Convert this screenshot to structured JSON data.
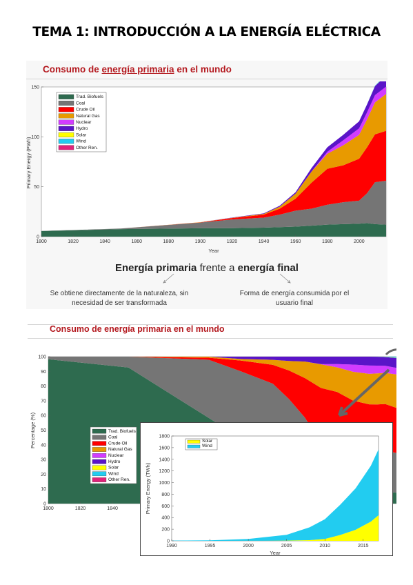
{
  "page": {
    "title": "TEMA 1: INTRODUCCIÓN A LA ENERGÍA ELÉCTRICA"
  },
  "slide1": {
    "title_pre": "Consumo de ",
    "title_link": "energía primaria",
    "title_post": " en el mundo",
    "heading_bold_1": "Energía primaria",
    "heading_mid": " frente a ",
    "heading_bold_2": "energía final",
    "desc_primary_1": "Se obtiene directamente de la naturaleza, sin",
    "desc_primary_2": "necesidad de ser transformada",
    "desc_final_1": "Forma de energía consumida por el",
    "desc_final_2": "usuario final"
  },
  "slide2": {
    "title": "Consumo de energía primaria en el mundo"
  },
  "colors": {
    "biofuels": "#2e6b4f",
    "coal": "#757575",
    "oil": "#ff0000",
    "gas": "#e89a00",
    "nuclear": "#d23cff",
    "hydro": "#5a14c8",
    "solar": "#ffff00",
    "wind": "#22ccf0",
    "other": "#e0237a",
    "title_red": "#b4191f"
  },
  "chart_data": [
    {
      "type": "area",
      "stacked": true,
      "xlabel": "Year",
      "ylabel": "Primary Energy (PWh)",
      "xlim": [
        1800,
        2017
      ],
      "ylim": [
        0,
        150
      ],
      "xticks": [
        "1800",
        "1820",
        "1840",
        "1860",
        "1880",
        "1900",
        "1920",
        "1940",
        "1960",
        "1980",
        "2000"
      ],
      "yticks": [
        "0",
        "50",
        "100",
        "150"
      ],
      "legend_position": "top-left",
      "x": [
        1800,
        1850,
        1900,
        1920,
        1940,
        1950,
        1960,
        1970,
        1980,
        1990,
        2000,
        2005,
        2010,
        2017
      ],
      "series": [
        {
          "name": "Trad. Biofuels",
          "values": [
            5.6,
            7.5,
            8.4,
            8.5,
            9,
            9.5,
            10,
            11,
            12,
            12.5,
            13,
            13.5,
            12.5,
            12
          ]
        },
        {
          "name": "Coal",
          "values": [
            0.1,
            0.6,
            5.7,
            8.7,
            10,
            12.5,
            16,
            17,
            20,
            22,
            23,
            30,
            42,
            44
          ]
        },
        {
          "name": "Crude Oil",
          "values": [
            0,
            0,
            0.2,
            1.4,
            3,
            6,
            12,
            26,
            36,
            37,
            42,
            46,
            48,
            50
          ]
        },
        {
          "name": "Natural Gas",
          "values": [
            0,
            0,
            0.1,
            0.2,
            0.8,
            2,
            5,
            11,
            15,
            20,
            24,
            28,
            32,
            37
          ]
        },
        {
          "name": "Nuclear",
          "values": [
            0,
            0,
            0,
            0,
            0,
            0,
            0,
            0.1,
            2,
            5,
            6.5,
            7,
            7.3,
            7.3
          ]
        },
        {
          "name": "Hydro",
          "values": [
            0,
            0,
            0,
            0.3,
            0.5,
            0.9,
            1.5,
            3.5,
            4.5,
            5.5,
            7,
            8,
            9,
            11
          ]
        },
        {
          "name": "Solar",
          "values": [
            0,
            0,
            0,
            0,
            0,
            0,
            0,
            0,
            0,
            0,
            0,
            0,
            0.1,
            0.3
          ]
        },
        {
          "name": "Wind",
          "values": [
            0,
            0,
            0,
            0,
            0,
            0,
            0,
            0,
            0,
            0,
            0,
            0.1,
            0.3,
            1.1
          ]
        },
        {
          "name": "Other Ren.",
          "values": [
            0,
            0,
            0,
            0,
            0,
            0,
            0,
            0,
            0,
            0,
            0,
            0,
            0,
            0
          ]
        }
      ]
    },
    {
      "type": "area",
      "stacked": true,
      "percent": true,
      "ylabel": "Percentage (%)",
      "xlim": [
        1800,
        2017
      ],
      "ylim": [
        0,
        100
      ],
      "xticks": [
        "1800",
        "1820",
        "1840"
      ],
      "yticks": [
        "0",
        "10",
        "20",
        "30",
        "40",
        "50",
        "60",
        "70",
        "80",
        "90",
        "100"
      ],
      "legend_position": "center",
      "series_names": [
        "Trad. Biofuels",
        "Coal",
        "Crude Oil",
        "Natural Gas",
        "Nuclear",
        "Hydro",
        "Solar",
        "Wind",
        "Other Ren."
      ]
    },
    {
      "type": "area",
      "stacked": true,
      "xlabel": "Year",
      "ylabel": "Primary Energy (TWh)",
      "xlim": [
        1990,
        2017
      ],
      "ylim": [
        0,
        1800
      ],
      "xticks": [
        "1990",
        "1995",
        "2000",
        "2005",
        "2010",
        "2015"
      ],
      "yticks": [
        "0",
        "200",
        "400",
        "600",
        "800",
        "1000",
        "1200",
        "1400",
        "1600",
        "1800"
      ],
      "legend_position": "top-left",
      "x": [
        1990,
        1995,
        2000,
        2005,
        2008,
        2010,
        2012,
        2014,
        2016,
        2017
      ],
      "series": [
        {
          "name": "Solar",
          "values": [
            0,
            0,
            1,
            4,
            12,
            32,
            100,
            190,
            330,
            440
          ]
        },
        {
          "name": "Wind",
          "values": [
            4,
            9,
            31,
            100,
            220,
            340,
            520,
            710,
            960,
            1130
          ]
        }
      ]
    }
  ]
}
